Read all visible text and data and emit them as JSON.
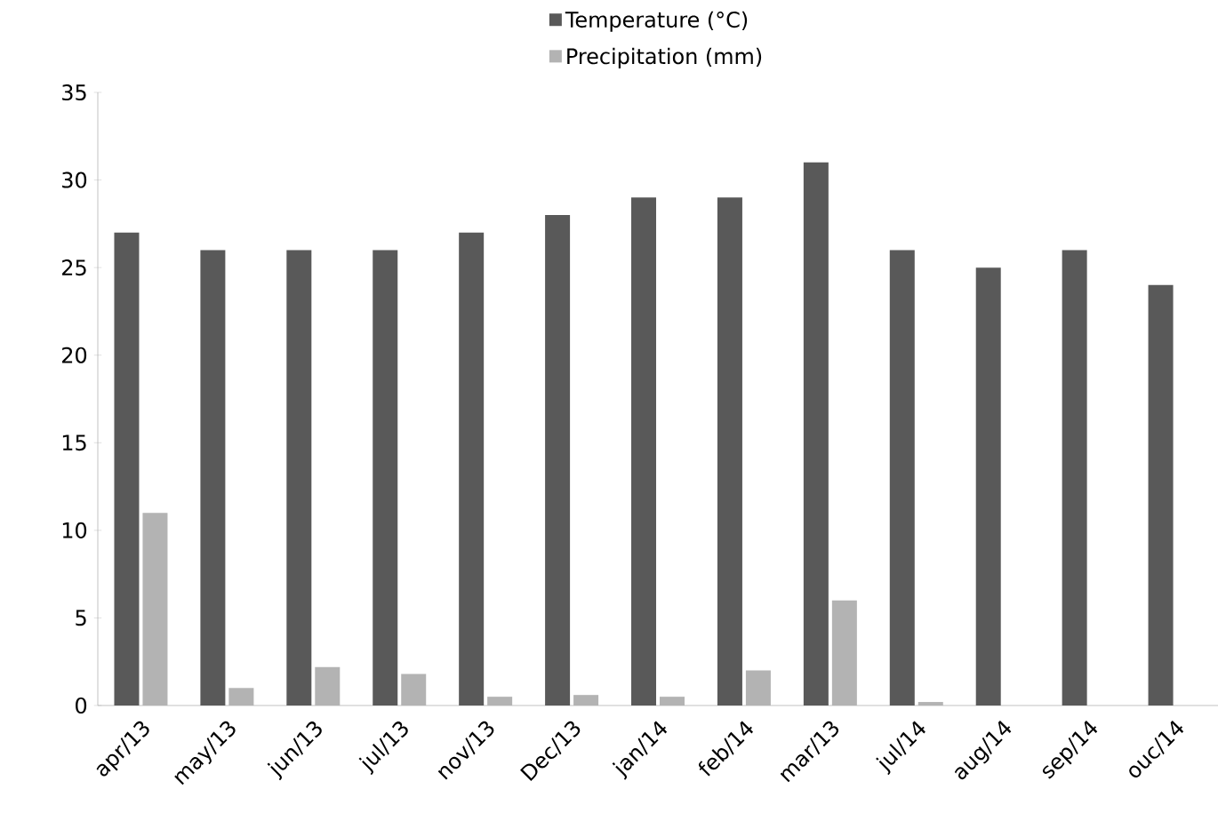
{
  "chart_data": {
    "type": "bar",
    "categories": [
      "apr/13",
      "may/13",
      "jun/13",
      "jul/13",
      "nov/13",
      "Dec/13",
      "jan/14",
      "feb/14",
      "mar/13",
      "jul/14",
      "aug/14",
      "sep/14",
      "ouc/14"
    ],
    "series": [
      {
        "name": "Temperature (°C)",
        "color": "#595959",
        "values": [
          27,
          26,
          26,
          26,
          27,
          28,
          29,
          29,
          31,
          26,
          25,
          26,
          24
        ]
      },
      {
        "name": "Precipitation (mm)",
        "color": "#b3b3b3",
        "values": [
          11,
          1,
          2.2,
          1.8,
          0.5,
          0.6,
          0.5,
          2,
          6,
          0.2,
          0,
          0,
          0
        ]
      }
    ],
    "ylim": [
      0,
      35
    ],
    "yticks": [
      0,
      5,
      10,
      15,
      20,
      25,
      30,
      35
    ],
    "grid": false,
    "legend": "top"
  }
}
